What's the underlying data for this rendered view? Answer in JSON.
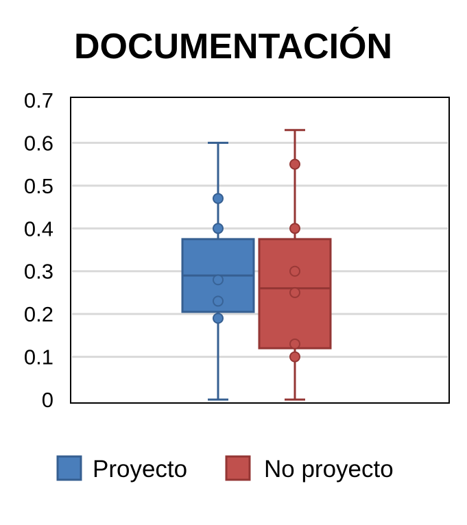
{
  "chart_data": {
    "type": "box",
    "title": "DOCUMENTACIÓN",
    "xlabel": "",
    "ylabel": "",
    "ylim": [
      0,
      0.7
    ],
    "yticks": [
      {
        "value": 0,
        "label": "0"
      },
      {
        "value": 0.1,
        "label": "0.1"
      },
      {
        "value": 0.2,
        "label": "0.2"
      },
      {
        "value": 0.3,
        "label": "0.3"
      },
      {
        "value": 0.4,
        "label": "0.4"
      },
      {
        "value": 0.5,
        "label": "0.5"
      },
      {
        "value": 0.6,
        "label": "0.6"
      },
      {
        "value": 0.7,
        "label": "0.7"
      }
    ],
    "grid": true,
    "legend_position": "bottom",
    "series": [
      {
        "name": "Proyecto",
        "color": "#4a7ebb",
        "edge_color": "#365f91",
        "min": 0,
        "q1": 0.205,
        "median": 0.29,
        "q3": 0.375,
        "max": 0.6,
        "points": [
          0.47,
          0.4,
          0.28,
          0.23,
          0.19
        ]
      },
      {
        "name": "No proyecto",
        "color": "#c0504d",
        "edge_color": "#943634",
        "min": 0,
        "q1": 0.12,
        "median": 0.26,
        "q3": 0.375,
        "max": 0.63,
        "points": [
          0.55,
          0.4,
          0.3,
          0.25,
          0.13,
          0.1
        ]
      }
    ]
  }
}
